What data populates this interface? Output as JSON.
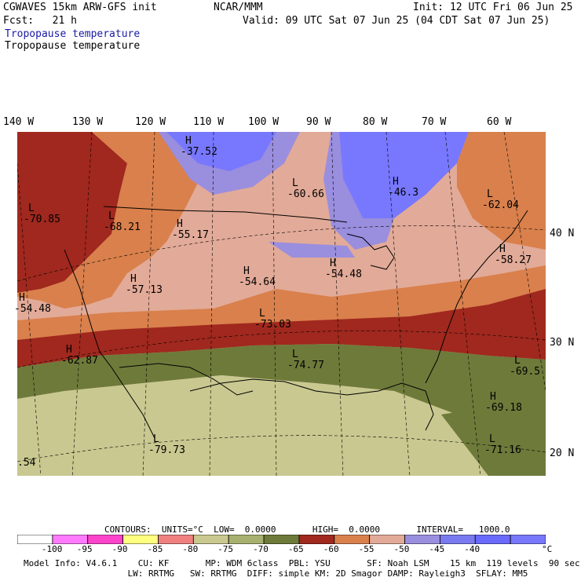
{
  "header": {
    "model_title": "CGWAVES 15km ARW-GFS init",
    "forecast": "Fcst:   21 h",
    "org": "NCAR/MMM",
    "init": "Init: 12 UTC Fri 06 Jun 25",
    "valid": "Valid: 09 UTC Sat 07 Jun 25 (04 CDT Sat 07 Jun 25)",
    "field_title_blue": "Tropopause temperature",
    "field_title_black": "Tropopause temperature"
  },
  "longitude_labels": [
    "140 W",
    "130 W",
    "120 W",
    "110 W",
    "100 W",
    "90 W",
    "80 W",
    "70 W",
    "60 W"
  ],
  "latitude_labels": [
    "40 N",
    "30 N",
    "20 N"
  ],
  "map_labels": [
    {
      "type": "H",
      "value": "-37.52"
    },
    {
      "type": "L",
      "value": "-70.85"
    },
    {
      "type": "L",
      "value": "-68.21"
    },
    {
      "type": "H",
      "value": "-55.17"
    },
    {
      "type": "L",
      "value": "-60.66"
    },
    {
      "type": "H",
      "value": "-46.3"
    },
    {
      "type": "L",
      "value": "-62.04"
    },
    {
      "type": "H",
      "value": "-58.27"
    },
    {
      "type": "H",
      "value": "-57.13"
    },
    {
      "type": "H",
      "value": "-54.64"
    },
    {
      "type": "H",
      "value": "-54.48"
    },
    {
      "type": "H",
      "value": "-54.48"
    },
    {
      "type": "L",
      "value": "-73.03"
    },
    {
      "type": "H",
      "value": "-62.87"
    },
    {
      "type": "L",
      "value": "-74.77"
    },
    {
      "type": "L",
      "value": "-69.5"
    },
    {
      "type": "H",
      "value": "-69.18"
    },
    {
      "type": "L",
      "value": "-71.16"
    },
    {
      "type": "L",
      "value": "-79.73"
    },
    {
      "type": "",
      "value": ".54"
    }
  ],
  "contours_line": "CONTOURS:  UNITS=°C  LOW=  0.0000       HIGH=  0.0000       INTERVAL=   1000.0",
  "colorbar": {
    "colors": [
      "#ffffff",
      "#ff7aff",
      "#ff44cc",
      "#ffff80",
      "#f08080",
      "#c8c890",
      "#a8b070",
      "#6e7a3a",
      "#a0281e",
      "#d9804c",
      "#e2aa98",
      "#9a8ede",
      "#7a7af0",
      "#6a6aff",
      "#7878ff"
    ],
    "labels": [
      "-100",
      "-95",
      "-90",
      "-85",
      "-80",
      "-75",
      "-70",
      "-65",
      "-60",
      "-55",
      "-50",
      "-45",
      "-40"
    ],
    "unit": "°C"
  },
  "footer": {
    "line1": "Model Info: V4.6.1    CU: KF       MP: WDM 6class  PBL: YSU       SF: Noah LSM    15 km  119 levels  90 sec",
    "line2": "                    LW: RRTMG   SW: RRTMG  DIFF: simple KM: 2D Smagor DAMP: Rayleigh3  SFLAY: MM5"
  },
  "colors": {
    "olive_dark": "#6e7a3a",
    "olive_light": "#c8c890",
    "dark_red": "#a0281e",
    "orange": "#d9804c",
    "pink": "#e2aa98",
    "lavender": "#9a8ede",
    "blue": "#7878ff"
  }
}
